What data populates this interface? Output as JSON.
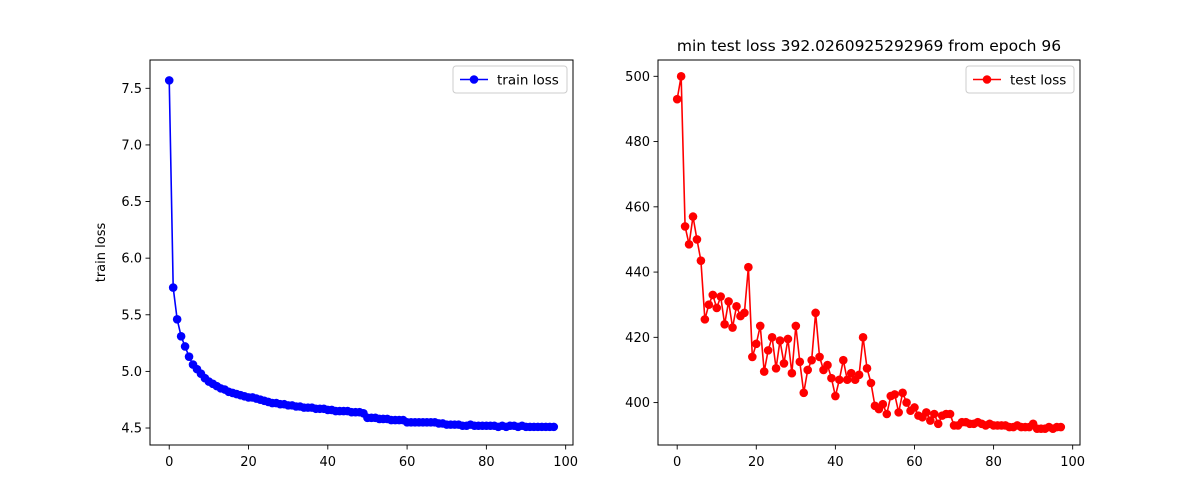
{
  "chart_data": [
    {
      "type": "line",
      "title": "",
      "xlabel": "",
      "ylabel": "train loss",
      "xlim": [
        -4.85,
        101.85
      ],
      "ylim": [
        4.35,
        7.75
      ],
      "xticks": [
        0,
        20,
        40,
        60,
        80,
        100
      ],
      "yticks": [
        4.5,
        5.0,
        5.5,
        6.0,
        6.5,
        7.0,
        7.5
      ],
      "ytick_labels": [
        "4.5",
        "5.0",
        "5.5",
        "6.0",
        "6.5",
        "7.0",
        "7.5"
      ],
      "grid": false,
      "legend_position": "top-right",
      "series": [
        {
          "name": "train loss",
          "color": "#0000ff",
          "marker": "circle",
          "x": [
            0,
            1,
            2,
            3,
            4,
            5,
            6,
            7,
            8,
            9,
            10,
            11,
            12,
            13,
            14,
            15,
            16,
            17,
            18,
            19,
            20,
            21,
            22,
            23,
            24,
            25,
            26,
            27,
            28,
            29,
            30,
            31,
            32,
            33,
            34,
            35,
            36,
            37,
            38,
            39,
            40,
            41,
            42,
            43,
            44,
            45,
            46,
            47,
            48,
            49,
            50,
            51,
            52,
            53,
            54,
            55,
            56,
            57,
            58,
            59,
            60,
            61,
            62,
            63,
            64,
            65,
            66,
            67,
            68,
            69,
            70,
            71,
            72,
            73,
            74,
            75,
            76,
            77,
            78,
            79,
            80,
            81,
            82,
            83,
            84,
            85,
            86,
            87,
            88,
            89,
            90,
            91,
            92,
            93,
            94,
            95,
            96,
            97
          ],
          "values": [
            7.57,
            5.74,
            5.46,
            5.31,
            5.22,
            5.13,
            5.06,
            5.02,
            4.98,
            4.94,
            4.91,
            4.89,
            4.87,
            4.85,
            4.84,
            4.82,
            4.81,
            4.8,
            4.79,
            4.78,
            4.77,
            4.77,
            4.76,
            4.75,
            4.74,
            4.73,
            4.72,
            4.72,
            4.71,
            4.71,
            4.7,
            4.7,
            4.69,
            4.69,
            4.68,
            4.68,
            4.68,
            4.67,
            4.67,
            4.67,
            4.66,
            4.66,
            4.65,
            4.65,
            4.65,
            4.65,
            4.64,
            4.64,
            4.64,
            4.63,
            4.59,
            4.59,
            4.59,
            4.58,
            4.58,
            4.58,
            4.57,
            4.57,
            4.57,
            4.57,
            4.55,
            4.55,
            4.55,
            4.55,
            4.55,
            4.55,
            4.55,
            4.55,
            4.54,
            4.54,
            4.53,
            4.53,
            4.53,
            4.53,
            4.52,
            4.52,
            4.53,
            4.52,
            4.52,
            4.52,
            4.52,
            4.52,
            4.52,
            4.51,
            4.52,
            4.51,
            4.52,
            4.52,
            4.51,
            4.52,
            4.51,
            4.51,
            4.51,
            4.51,
            4.51,
            4.51,
            4.51,
            4.51
          ]
        }
      ]
    },
    {
      "type": "line",
      "title": "min test loss 392.0260925292969 from epoch 96",
      "xlabel": "",
      "ylabel": "",
      "xlim": [
        -4.85,
        101.85
      ],
      "ylim": [
        387.0,
        505.0
      ],
      "xticks": [
        0,
        20,
        40,
        60,
        80,
        100
      ],
      "yticks": [
        400,
        420,
        440,
        460,
        480,
        500
      ],
      "grid": false,
      "legend_position": "top-right",
      "series": [
        {
          "name": "test loss",
          "color": "#ff0000",
          "marker": "circle",
          "x": [
            0,
            1,
            2,
            3,
            4,
            5,
            6,
            7,
            8,
            9,
            10,
            11,
            12,
            13,
            14,
            15,
            16,
            17,
            18,
            19,
            20,
            21,
            22,
            23,
            24,
            25,
            26,
            27,
            28,
            29,
            30,
            31,
            32,
            33,
            34,
            35,
            36,
            37,
            38,
            39,
            40,
            41,
            42,
            43,
            44,
            45,
            46,
            47,
            48,
            49,
            50,
            51,
            52,
            53,
            54,
            55,
            56,
            57,
            58,
            59,
            60,
            61,
            62,
            63,
            64,
            65,
            66,
            67,
            68,
            69,
            70,
            71,
            72,
            73,
            74,
            75,
            76,
            77,
            78,
            79,
            80,
            81,
            82,
            83,
            84,
            85,
            86,
            87,
            88,
            89,
            90,
            91,
            92,
            93,
            94,
            95,
            96,
            97
          ],
          "values": [
            493,
            500,
            454,
            448.5,
            457,
            450,
            443.5,
            425.5,
            430,
            433,
            429,
            432.5,
            424,
            431,
            423,
            429.5,
            426.5,
            427.5,
            441.5,
            414,
            418,
            423.5,
            409.5,
            416,
            420,
            410.5,
            419,
            412,
            419.5,
            409,
            423.5,
            412.5,
            403,
            410,
            413,
            427.5,
            414,
            410,
            411.5,
            407.5,
            402,
            407,
            413,
            407,
            409,
            407,
            408.5,
            420,
            410.5,
            406,
            399,
            398,
            399.5,
            396.5,
            402,
            402.5,
            397,
            403,
            400,
            397.5,
            398.5,
            396,
            395.5,
            397,
            394.5,
            396.5,
            393.5,
            396,
            396.5,
            396.5,
            393,
            393,
            394,
            394,
            393.5,
            393.5,
            394,
            393.5,
            393,
            393.5,
            393,
            393,
            393,
            393,
            392.5,
            392.5,
            393,
            392.5,
            392.5,
            392.5,
            393.5,
            392,
            392,
            392,
            392.5,
            392,
            392.5,
            392.5
          ]
        }
      ]
    }
  ]
}
